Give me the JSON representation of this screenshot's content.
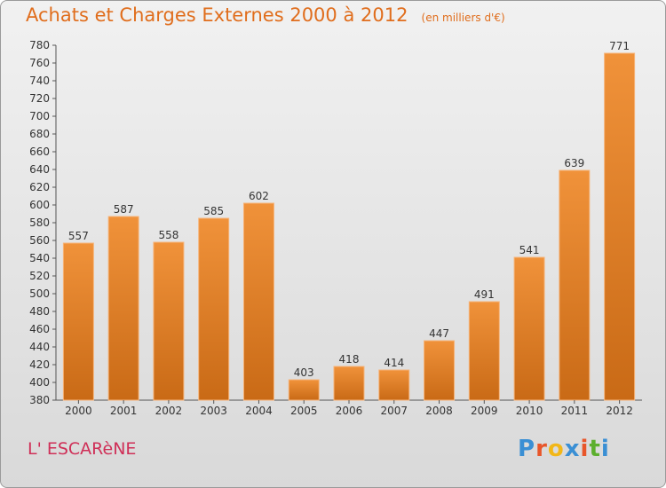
{
  "header": {
    "title": "Achats et Charges Externes 2000 à 2012",
    "subtitle": "(en milliers d'€)"
  },
  "footer": {
    "commune": "L' ESCARèNE",
    "logo_text": "Proxiti"
  },
  "colors": {
    "bar": "#f0923a",
    "bar_dark": "#c96a16",
    "title": "#e06d1c",
    "commune": "#cf2f57",
    "logo": [
      "#3a8fd4",
      "#e8562a",
      "#f2b718",
      "#3a8fd4",
      "#e8562a",
      "#5caf2d",
      "#3a8fd4"
    ]
  },
  "chart_data": {
    "type": "bar",
    "categories": [
      "2000",
      "2001",
      "2002",
      "2003",
      "2004",
      "2005",
      "2006",
      "2007",
      "2008",
      "2009",
      "2010",
      "2011",
      "2012"
    ],
    "values": [
      557,
      587,
      558,
      585,
      602,
      403,
      418,
      414,
      447,
      491,
      541,
      639,
      771
    ],
    "ylim": [
      380,
      780
    ],
    "ytick_step": 20,
    "grid": false,
    "data_labels": true
  }
}
